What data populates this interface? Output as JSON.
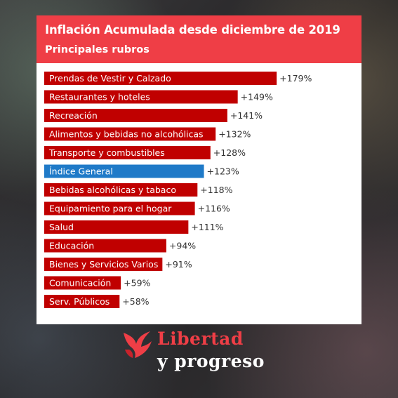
{
  "header": {
    "title": "Inflación Acumulada desde diciembre de 2019",
    "subtitle": "Principales rubros"
  },
  "logo": {
    "line1": "Libertad",
    "line2": "y progreso",
    "icon": "flame-bird-icon"
  },
  "colors": {
    "header_bg": "#ef3e46",
    "bar": "#c00000",
    "highlight_bar": "#1f7ac8",
    "logo_red": "#ef3e46"
  },
  "chart_data": {
    "type": "bar",
    "orientation": "horizontal",
    "title": "Inflación Acumulada desde diciembre de 2019",
    "subtitle": "Principales rubros",
    "unit": "%",
    "xlim": [
      0,
      200
    ],
    "grid": false,
    "highlight": "Índice General",
    "categories": [
      "Prendas de Vestir y Calzado",
      "Restaurantes y hoteles",
      "Recreación",
      "Alimentos y bebidas no alcohólicas",
      "Transporte y combustibles",
      "Índice General",
      "Bebidas alcohólicas y tabaco",
      "Equipamiento para el hogar",
      "Salud",
      "Educación",
      "Bienes y Servicios Varios",
      "Comunicación",
      "Serv. Públicos"
    ],
    "values": [
      179,
      149,
      141,
      132,
      128,
      123,
      118,
      116,
      111,
      94,
      91,
      59,
      58
    ],
    "value_labels": [
      "+179%",
      "+149%",
      "+141%",
      "+132%",
      "+128%",
      "+123%",
      "+118%",
      "+116%",
      "+111%",
      "+94%",
      "+91%",
      "+59%",
      "+58%"
    ]
  }
}
